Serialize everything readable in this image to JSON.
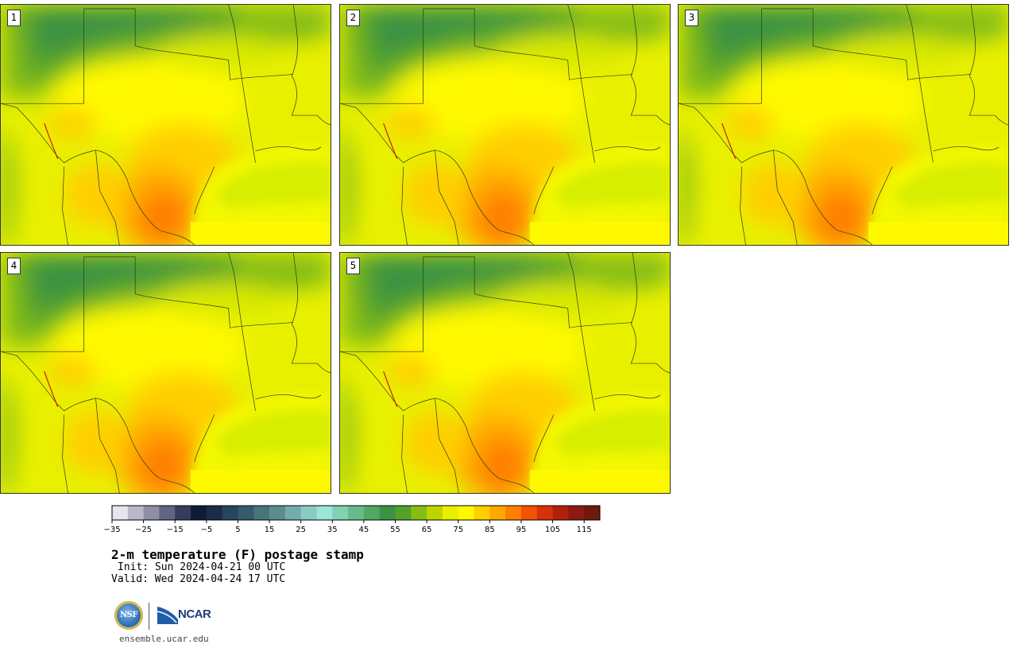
{
  "panels": [
    {
      "label": "1"
    },
    {
      "label": "2"
    },
    {
      "label": "3"
    },
    {
      "label": "4"
    },
    {
      "label": "5"
    }
  ],
  "colorbar": {
    "colors": [
      "#e6e6ec",
      "#b8b8c8",
      "#8e8fa5",
      "#5f6582",
      "#343d5c",
      "#101c36",
      "#1a2c48",
      "#26455e",
      "#355b6c",
      "#477679",
      "#5c8c8c",
      "#74acab",
      "#8ccac4",
      "#9de5d6",
      "#80d2b2",
      "#67bb8b",
      "#50a865",
      "#3a9243",
      "#52a22a",
      "#85bd14",
      "#bed400",
      "#e8f000",
      "#fff900",
      "#ffcf00",
      "#ffa800",
      "#ff7f00",
      "#f45200",
      "#d43208",
      "#b0200e",
      "#8c1a0e",
      "#6e1a0e"
    ],
    "ticks": [
      "−35",
      "−25",
      "−15",
      "−5",
      "5",
      "15",
      "25",
      "35",
      "45",
      "55",
      "65",
      "75",
      "85",
      "95",
      "105",
      "115"
    ]
  },
  "title": "2-m temperature (F) postage stamp",
  "init": "Init: Sun 2024-04-21 00 UTC",
  "valid": "Valid: Wed 2024-04-24 17 UTC",
  "logos": {
    "nsf": "NSF",
    "ncar": "NCAR"
  },
  "website": "ensemble.ucar.edu"
}
